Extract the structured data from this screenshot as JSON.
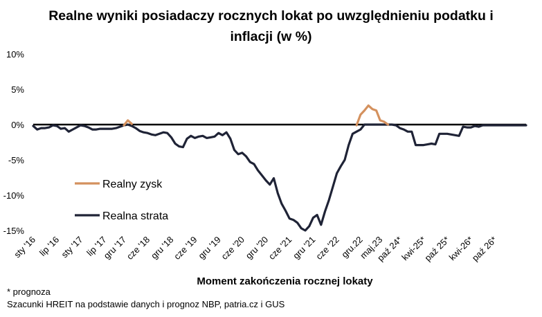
{
  "title_line1": "Realne wyniki posiadaczy rocznych lokat po uwzględnieniu podatku i",
  "title_line2": "inflacji (w %)",
  "footnote": "* prognoza",
  "source": "Szacunki HREIT na podstawie danych i prognoz NBP,  patria.cz  i GUS",
  "chart_data": {
    "type": "line",
    "title": "Realne wyniki posiadaczy rocznych lokat po uwzględnieniu podatku i inflacji (w %)",
    "xlabel": "Moment zakończenia rocznej lokaty",
    "ylabel": "",
    "ylim": [
      -15,
      10
    ],
    "yticks": [
      10,
      5,
      0,
      -5,
      -10,
      -15
    ],
    "ytick_labels": [
      "10%",
      "5%",
      "0%",
      "-5%",
      "-10%",
      "-15%"
    ],
    "grid": false,
    "legend": "middle-left",
    "x_start": "sty '16",
    "x_step": "1 month",
    "xtick_labels": [
      "sty '16",
      "lip '16",
      "sty '17",
      "lip '17",
      "gru '17",
      "cze '18",
      "gru '18",
      "cze '19",
      "gru '19",
      "cze '20",
      "gru '20",
      "cze '21",
      "gru '21",
      "cze '22",
      "gru.22",
      "maj.23",
      "paź 24*",
      "kwi-25*",
      "paź 25*",
      "kwi-26*",
      "paź 26*"
    ],
    "xtick_index": [
      0,
      6,
      12,
      18,
      23,
      29,
      35,
      41,
      47,
      53,
      59,
      65,
      71,
      77,
      83,
      88,
      93,
      99,
      105,
      111,
      117
    ],
    "series": [
      {
        "name": "Realny zysk",
        "color": "#D4915E",
        "segments": [
          {
            "start": 23,
            "values": [
              -0.1,
              0.6,
              0.1
            ]
          },
          {
            "start": 82,
            "values": [
              -0.1,
              1.4,
              2.0,
              2.7,
              2.2,
              2.0,
              0.6,
              0.4,
              0.0
            ]
          }
        ]
      },
      {
        "name": "Realna strata",
        "color": "#1F2336",
        "values": [
          -0.2,
          -0.7,
          -0.5,
          -0.5,
          -0.4,
          -0.1,
          -0.2,
          -0.6,
          -0.5,
          -1.0,
          -0.7,
          -0.4,
          -0.1,
          -0.2,
          -0.4,
          -0.7,
          -0.7,
          -0.6,
          -0.6,
          -0.6,
          -0.6,
          -0.5,
          -0.3,
          -0.1,
          0.0,
          -0.2,
          -0.5,
          -0.9,
          -1.1,
          -1.2,
          -1.4,
          -1.5,
          -1.3,
          -1.1,
          -1.2,
          -1.8,
          -2.7,
          -3.1,
          -3.2,
          -2.0,
          -1.6,
          -1.9,
          -1.7,
          -1.6,
          -1.9,
          -1.8,
          -1.7,
          -1.2,
          -1.5,
          -1.1,
          -2.0,
          -3.6,
          -4.2,
          -4.0,
          -4.5,
          -5.3,
          -5.6,
          -6.5,
          -7.2,
          -7.9,
          -8.5,
          -7.6,
          -9.7,
          -11.2,
          -12.2,
          -13.3,
          -13.5,
          -13.9,
          -14.7,
          -15.0,
          -14.4,
          -13.2,
          -12.8,
          -14.2,
          -12.3,
          -10.7,
          -8.8,
          -6.9,
          -5.9,
          -5.0,
          -2.9,
          -1.3,
          -1.0,
          -0.7,
          0.0,
          0.0,
          0.0,
          0.0,
          0.0,
          0.0,
          0.0,
          0.0,
          -0.1,
          -0.5,
          -0.7,
          -1.0,
          -1.0,
          -2.9,
          -2.9,
          -2.9,
          -2.8,
          -2.7,
          -2.8,
          -1.3,
          -1.3,
          -1.3,
          -1.4,
          -1.5,
          -1.6,
          -0.3,
          -0.4,
          -0.4,
          -0.2,
          -0.3,
          -0.1,
          -0.1,
          -0.1,
          -0.1,
          -0.1,
          -0.1,
          -0.1,
          -0.1,
          -0.1,
          -0.1,
          -0.1,
          -0.1
        ]
      }
    ]
  }
}
